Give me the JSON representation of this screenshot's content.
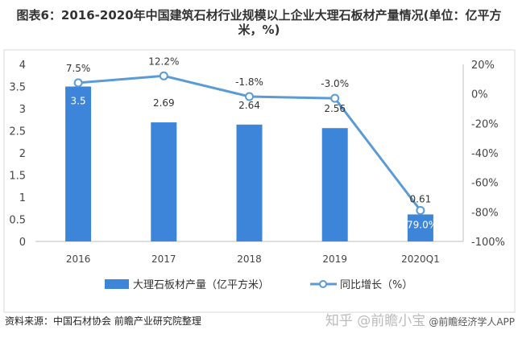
{
  "title": "图表6：2016-2020年中国建筑石材行业规模以上企业大理石板材产量情况(单位：亿平方米，%)",
  "source": "资料来源：中国石材协会 前瞻产业研究院整理",
  "watermark": {
    "zhihu": "知乎 @前瞻小宝",
    "app": "@前瞻经济学人APP"
  },
  "chart_data": {
    "type": "bar+line",
    "categories": [
      "2016",
      "2017",
      "2018",
      "2019",
      "2020Q1"
    ],
    "series": [
      {
        "name": "大理石板材产量（亿平方米）",
        "type": "bar",
        "axis": "left",
        "values": [
          3.5,
          2.69,
          2.64,
          2.56,
          0.61
        ],
        "labels": [
          "3.5",
          "2.69",
          "2.64",
          "2.56",
          "0.61"
        ],
        "color": "#3d85d8"
      },
      {
        "name": "同比增长（%）",
        "type": "line",
        "axis": "right",
        "values": [
          7.5,
          12.2,
          -1.8,
          -3.0,
          -79.0
        ],
        "labels": [
          "7.5%",
          "12.2%",
          "-1.8%",
          "-3.0%",
          "-79.0%"
        ],
        "color": "#5b9bd5"
      }
    ],
    "y_left": {
      "range": [
        0,
        4
      ],
      "ticks": [
        "0",
        "0.5",
        "1",
        "1.5",
        "2",
        "2.5",
        "3",
        "3.5",
        "4"
      ]
    },
    "y_right": {
      "range": [
        -100,
        20
      ],
      "ticks": [
        "-100%",
        "-80%",
        "-60%",
        "-40%",
        "-20%",
        "0%",
        "20%"
      ]
    },
    "grid": false,
    "legend": "bottom"
  }
}
